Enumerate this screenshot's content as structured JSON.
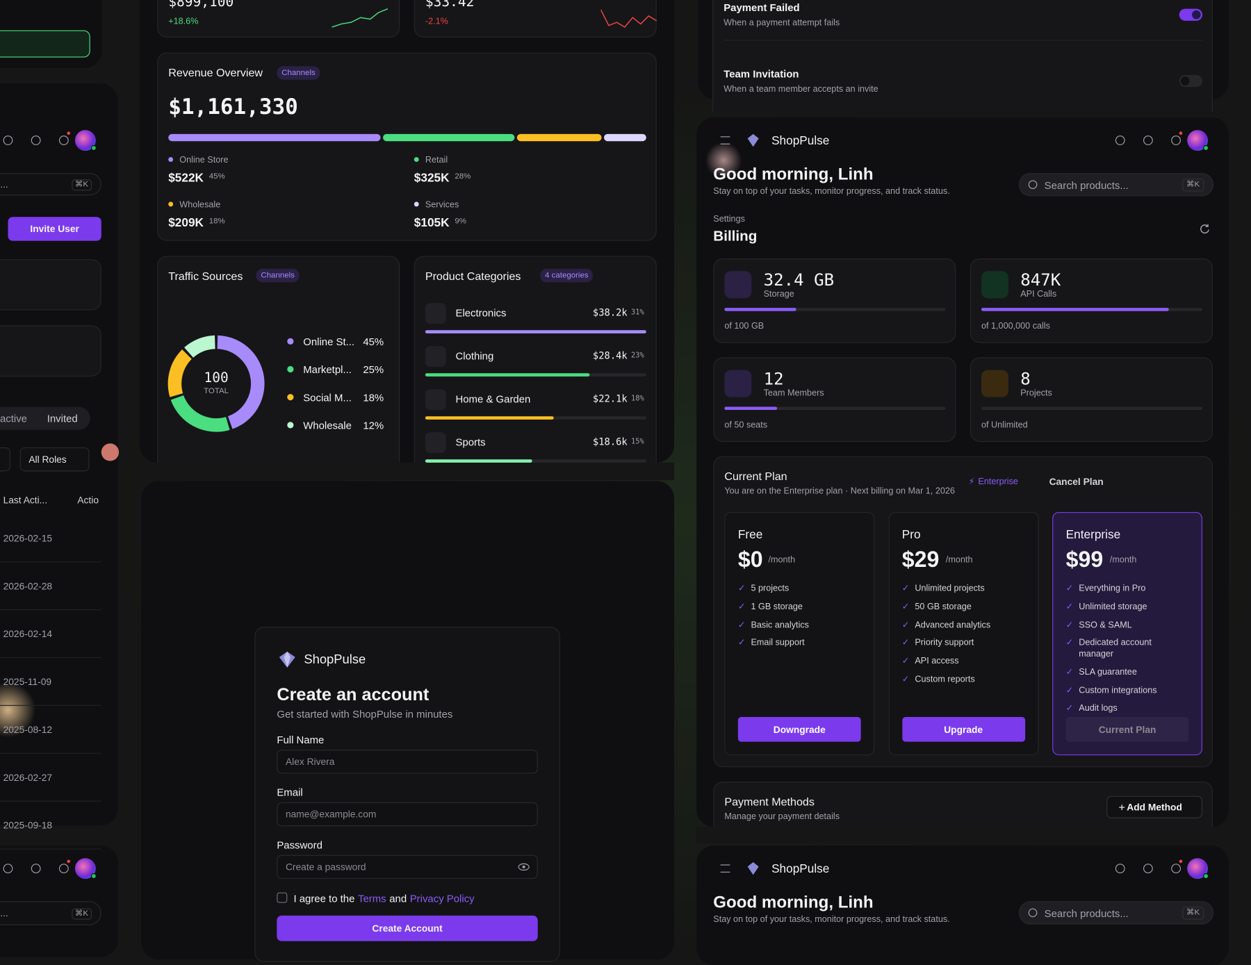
{
  "left_panel": {
    "search_hint": "ts...",
    "shortcut": "⌘K",
    "invite_button": "Invite User",
    "tabs": [
      "active",
      "Invited"
    ],
    "role_filter": "All Roles",
    "columns": [
      "Last Acti...",
      "Actio"
    ],
    "dates": [
      "2026-02-15",
      "2026-02-28",
      "2026-02-14",
      "2025-11-09",
      "2025-08-12",
      "2026-02-27",
      "2025-09-18"
    ],
    "search_hint_bottom": "ts...",
    "shortcut_bottom": "⌘K"
  },
  "stats": [
    {
      "value": "$899,100",
      "change": "+18.6%",
      "color": "#4ade80"
    },
    {
      "value": "$33.42",
      "change": "-2.1%",
      "color": "#ef4444"
    }
  ],
  "revenue": {
    "title": "Revenue Overview",
    "badge": "Channels",
    "total": "$1,161,330",
    "names": [
      "Online Store",
      "Retail",
      "Wholesale",
      "Services"
    ],
    "amounts": [
      "$522K",
      "$325K",
      "$209K",
      "$105K"
    ],
    "values": [
      45,
      28,
      18,
      9
    ],
    "value_labels": [
      "45%",
      "28%",
      "18%",
      "9%"
    ],
    "colors": [
      "#a78bfa",
      "#4ade80",
      "#fbbf24",
      "#ddd6fe"
    ]
  },
  "traffic": {
    "title": "Traffic Sources",
    "badge": "Channels",
    "center_value": "100",
    "center_label": "TOTAL",
    "names": [
      "Online St...",
      "Marketpl...",
      "Social M...",
      "Wholesale"
    ],
    "values": [
      45,
      25,
      18,
      12
    ],
    "value_labels": [
      "45%",
      "25%",
      "18%",
      "12%"
    ],
    "colors": [
      "#a78bfa",
      "#4ade80",
      "#fbbf24",
      "#bbf7d0"
    ]
  },
  "categories": {
    "title": "Product Categories",
    "badge": "4 categories",
    "names": [
      "Electronics",
      "Clothing",
      "Home & Garden",
      "Sports"
    ],
    "amounts": [
      "$38.2k",
      "$28.4k",
      "$22.1k",
      "$18.6k"
    ],
    "values": [
      31,
      23,
      18,
      15
    ],
    "value_labels": [
      "31%",
      "23%",
      "18%",
      "15%"
    ],
    "colors": [
      "#a78bfa",
      "#4ade80",
      "#fbbf24",
      "#86efac"
    ]
  },
  "notifications": [
    {
      "title": "Payment Failed",
      "description": "When a payment attempt fails",
      "enabled": true
    },
    {
      "title": "Team Invitation",
      "description": "When a team member accepts an invite",
      "enabled": false
    }
  ],
  "header": {
    "brand": "ShopPulse",
    "greeting": "Good morning, Linh",
    "subtitle": "Stay on top of your tasks, monitor progress, and track status.",
    "search_placeholder": "Search products...",
    "shortcut": "⌘K"
  },
  "billing": {
    "breadcrumb": "Settings",
    "title": "Billing",
    "usage": [
      {
        "value": "32.4 GB",
        "label": "Storage",
        "limit": "of 100 GB",
        "used": 32.4,
        "max": 100,
        "color": "#8b5cf6"
      },
      {
        "value": "847K",
        "label": "API Calls",
        "limit": "of 1,000,000 calls",
        "used": 847000,
        "max": 1000000,
        "color": "#8b5cf6"
      },
      {
        "value": "12",
        "label": "Team Members",
        "limit": "of 50 seats",
        "used": 12,
        "max": 50,
        "color": "#8b5cf6"
      },
      {
        "value": "8",
        "label": "Projects",
        "limit": "of Unlimited"
      }
    ],
    "current_plan": {
      "title": "Current Plan",
      "description": "You are on the Enterprise plan · Next billing on Mar 1, 2026",
      "badge": "Enterprise",
      "cancel": "Cancel Plan"
    },
    "plans": [
      {
        "name": "Free",
        "price": "$0",
        "period": "/month",
        "features": [
          "5 projects",
          "1 GB storage",
          "Basic analytics",
          "Email support"
        ],
        "button": "Downgrade",
        "current": false
      },
      {
        "name": "Pro",
        "price": "$29",
        "period": "/month",
        "features": [
          "Unlimited projects",
          "50 GB storage",
          "Advanced analytics",
          "Priority support",
          "API access",
          "Custom reports"
        ],
        "button": "Upgrade",
        "current": false
      },
      {
        "name": "Enterprise",
        "price": "$99",
        "period": "/month",
        "features": [
          "Everything in Pro",
          "Unlimited storage",
          "SSO & SAML",
          "Dedicated account manager",
          "SLA guarantee",
          "Custom integrations",
          "Audit logs"
        ],
        "button": "Current Plan",
        "current": true
      }
    ],
    "payment_methods": {
      "title": "Payment Methods",
      "subtitle": "Manage your payment details",
      "button": "Add Method"
    }
  },
  "header_bottom": {
    "brand": "ShopPulse",
    "greeting": "Good morning, Linh",
    "subtitle": "Stay on top of your tasks, monitor progress, and track status.",
    "search_placeholder": "Search products...",
    "shortcut": "⌘K"
  },
  "signup": {
    "brand": "ShopPulse",
    "title": "Create an account",
    "subtitle": "Get started with ShopPulse in minutes",
    "name_label": "Full Name",
    "name_placeholder": "Alex Rivera",
    "email_label": "Email",
    "email_placeholder": "name@example.com",
    "password_label": "Password",
    "password_placeholder": "Create a password",
    "agree": "I agree to the",
    "terms": "Terms",
    "and": "and",
    "privacy": "Privacy Policy",
    "button": "Create Account"
  }
}
